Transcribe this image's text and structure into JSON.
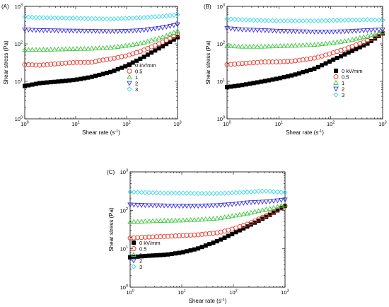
{
  "chart_data": [
    {
      "type": "scatter",
      "panel_label": "(A)",
      "xlabel": "Shear rate (s",
      "xlabel_sup": "-1",
      "xlabel_end": ")",
      "ylabel": "Shear stress (Pa)",
      "x_scale": "log",
      "y_scale": "log",
      "xlim": [
        1,
        1000
      ],
      "ylim": [
        1,
        1000
      ],
      "x_ticks": [
        {
          "b": "10",
          "e": "0"
        },
        {
          "b": "10",
          "e": "1"
        },
        {
          "b": "10",
          "e": "2"
        },
        {
          "b": "10",
          "e": "3"
        }
      ],
      "y_ticks": [
        {
          "b": "10",
          "e": "0"
        },
        {
          "b": "10",
          "e": "1"
        },
        {
          "b": "10",
          "e": "2"
        },
        {
          "b": "10",
          "e": "3"
        }
      ],
      "legend_position": "bottom-right",
      "series": [
        {
          "name": "0 kV/mm",
          "marker": "square-filled",
          "color": "#000000",
          "x": [
            1,
            2,
            5,
            10,
            20,
            50,
            100,
            200,
            500,
            1000
          ],
          "y": [
            7.5,
            9,
            10,
            11,
            13,
            18,
            26,
            42,
            85,
            150
          ]
        },
        {
          "name": "0.5",
          "marker": "circle-open",
          "color": "#e8382c",
          "x": [
            1,
            2,
            5,
            10,
            20,
            30,
            50,
            100,
            200,
            500,
            1000
          ],
          "y": [
            28,
            27,
            30,
            32,
            32,
            36,
            40,
            48,
            65,
            110,
            175
          ]
        },
        {
          "name": "1",
          "marker": "triangle-up-open",
          "color": "#3ec63e",
          "x": [
            1,
            2,
            5,
            10,
            20,
            50,
            100,
            200,
            500,
            1000
          ],
          "y": [
            70,
            70,
            72,
            74,
            75,
            80,
            90,
            105,
            150,
            220
          ]
        },
        {
          "name": "2",
          "marker": "triangle-down-open",
          "color": "#3b30d6",
          "x": [
            1,
            2,
            5,
            10,
            20,
            50,
            100,
            200,
            500,
            1000
          ],
          "y": [
            240,
            230,
            225,
            222,
            220,
            215,
            220,
            230,
            270,
            330
          ]
        },
        {
          "name": "3",
          "marker": "diamond-open",
          "color": "#3dd8e8",
          "x": [
            1,
            2,
            5,
            10,
            20,
            50,
            100,
            200,
            500,
            1000
          ],
          "y": [
            520,
            500,
            490,
            480,
            470,
            460,
            480,
            500,
            540,
            600
          ]
        }
      ]
    },
    {
      "type": "scatter",
      "panel_label": "(B)",
      "xlabel": "Shear rate (s",
      "xlabel_sup": "-1",
      "xlabel_end": ")",
      "ylabel": "Shear stress (Pa)",
      "x_scale": "log",
      "y_scale": "log",
      "xlim": [
        1,
        1000
      ],
      "ylim": [
        1,
        1000
      ],
      "x_ticks": [
        {
          "b": "10",
          "e": "0"
        },
        {
          "b": "10",
          "e": "1"
        },
        {
          "b": "10",
          "e": "2"
        },
        {
          "b": "10",
          "e": "3"
        }
      ],
      "y_ticks": [
        {
          "b": "10",
          "e": "0"
        },
        {
          "b": "10",
          "e": "1"
        },
        {
          "b": "10",
          "e": "2"
        },
        {
          "b": "10",
          "e": "3"
        }
      ],
      "legend_position": "bottom-right",
      "series": [
        {
          "name": "0 kV/mm",
          "marker": "square-filled",
          "color": "#000000",
          "x": [
            1,
            2,
            5,
            10,
            20,
            50,
            100,
            200,
            500,
            1000
          ],
          "y": [
            7,
            8,
            10,
            12,
            15,
            22,
            35,
            55,
            100,
            190
          ]
        },
        {
          "name": "0.5",
          "marker": "circle-open",
          "color": "#e8382c",
          "x": [
            1,
            2,
            5,
            10,
            20,
            50,
            100,
            200,
            500,
            1000
          ],
          "y": [
            28,
            30,
            33,
            33,
            35,
            42,
            55,
            75,
            120,
            200
          ]
        },
        {
          "name": "1",
          "marker": "triangle-up-open",
          "color": "#3ec63e",
          "x": [
            1,
            2,
            5,
            10,
            20,
            50,
            100,
            200,
            500,
            1000
          ],
          "y": [
            88,
            85,
            85,
            88,
            90,
            95,
            105,
            120,
            160,
            210
          ]
        },
        {
          "name": "2",
          "marker": "triangle-down-open",
          "color": "#3b30d6",
          "x": [
            1,
            2,
            5,
            10,
            20,
            50,
            100,
            200,
            500,
            1000
          ],
          "y": [
            260,
            240,
            230,
            220,
            215,
            210,
            210,
            215,
            230,
            240
          ]
        },
        {
          "name": "3",
          "marker": "diamond-open",
          "color": "#3dd8e8",
          "x": [
            1,
            2,
            5,
            10,
            20,
            50,
            100,
            200,
            500,
            1000
          ],
          "y": [
            460,
            440,
            420,
            410,
            410,
            410,
            420,
            430,
            440,
            430
          ]
        }
      ]
    },
    {
      "type": "scatter",
      "panel_label": "(C)",
      "xlabel": "Shear rate (s",
      "xlabel_sup": "-1",
      "xlabel_end": ")",
      "ylabel": "Shear stress (Pa)",
      "x_scale": "log",
      "y_scale": "log",
      "xlim": [
        1,
        1000
      ],
      "ylim": [
        1,
        1000
      ],
      "x_ticks": [
        {
          "b": "10",
          "e": "0"
        },
        {
          "b": "10",
          "e": "1"
        },
        {
          "b": "10",
          "e": "2"
        },
        {
          "b": "10",
          "e": "3"
        }
      ],
      "y_ticks": [
        {
          "b": "10",
          "e": "0"
        },
        {
          "b": "10",
          "e": "1"
        },
        {
          "b": "10",
          "e": "2"
        },
        {
          "b": "10",
          "e": "3"
        }
      ],
      "legend_position": "bottom-left",
      "series": [
        {
          "name": "0 kV/mm",
          "marker": "square-filled",
          "color": "#000000",
          "x": [
            1,
            2,
            5,
            10,
            20,
            50,
            100,
            200,
            500,
            1000
          ],
          "y": [
            6,
            6.5,
            7,
            8,
            10,
            16,
            25,
            40,
            75,
            130
          ]
        },
        {
          "name": "0.5",
          "marker": "circle-open",
          "color": "#e8382c",
          "x": [
            1,
            2,
            5,
            10,
            20,
            50,
            100,
            200,
            500,
            1000
          ],
          "y": [
            19,
            20,
            21,
            22,
            23,
            26,
            33,
            45,
            80,
            130
          ]
        },
        {
          "name": "1",
          "marker": "triangle-up-open",
          "color": "#3ec63e",
          "x": [
            1,
            2,
            5,
            10,
            20,
            50,
            100,
            200,
            500,
            1000
          ],
          "y": [
            50,
            52,
            54,
            55,
            57,
            62,
            72,
            85,
            110,
            140
          ]
        },
        {
          "name": "2",
          "marker": "triangle-down-open",
          "color": "#3b30d6",
          "x": [
            1,
            2,
            5,
            10,
            20,
            50,
            100,
            200,
            500,
            1000
          ],
          "y": [
            140,
            135,
            132,
            130,
            130,
            135,
            145,
            160,
            170,
            190
          ]
        },
        {
          "name": "3",
          "marker": "diamond-open",
          "color": "#3dd8e8",
          "x": [
            1,
            2,
            5,
            10,
            20,
            50,
            100,
            200,
            400,
            1000
          ],
          "y": [
            300,
            290,
            280,
            280,
            275,
            275,
            285,
            300,
            320,
            290
          ]
        }
      ]
    }
  ]
}
